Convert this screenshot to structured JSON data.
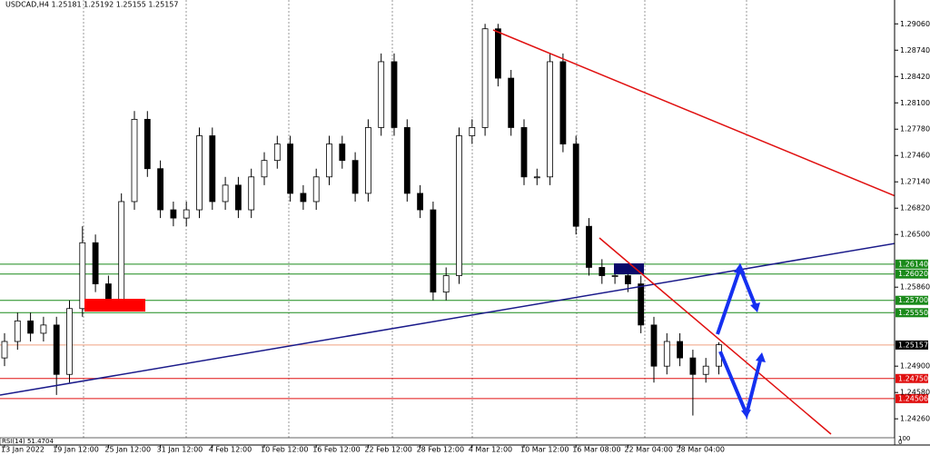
{
  "chart_data": {
    "type": "candlestick",
    "title": "USDCAD,H4  1.25181 1.25192 1.25155 1.25157",
    "annotations": [
      "RSI(14) 51.4704",
      "100",
      "0"
    ],
    "categories": [
      "13 Jan 2022",
      null,
      null,
      null,
      "19 Jan 12:00",
      null,
      null,
      null,
      "25 Jan 12:00",
      null,
      null,
      null,
      "31 Jan 12:00",
      null,
      null,
      null,
      "4 Feb 12:00",
      null,
      null,
      null,
      "10 Feb 12:00",
      null,
      null,
      null,
      "16 Feb 12:00",
      null,
      null,
      null,
      "22 Feb 12:00",
      null,
      null,
      null,
      "28 Feb 12:00",
      null,
      null,
      null,
      "4 Mar 12:00",
      null,
      null,
      null,
      "10 Mar 12:00",
      null,
      null,
      null,
      "16 Mar 08:00",
      null,
      null,
      null,
      "22 Mar 04:00",
      null,
      null,
      null,
      "28 Mar 04:00",
      null,
      null,
      null
    ],
    "open": [
      1.25,
      1.252,
      1.2545,
      1.253,
      1.254,
      1.248,
      1.256,
      1.264,
      1.259,
      1.257,
      1.269,
      1.279,
      1.273,
      1.268,
      1.267,
      1.268,
      1.277,
      1.269,
      1.271,
      1.268,
      1.272,
      1.274,
      1.276,
      1.27,
      1.269,
      1.272,
      1.276,
      1.274,
      1.27,
      1.278,
      1.286,
      1.278,
      1.27,
      1.268,
      1.258,
      1.26,
      1.277,
      1.278,
      1.29,
      1.284,
      1.278,
      1.272,
      1.272,
      1.286,
      1.276,
      1.266,
      1.261,
      1.26,
      1.26,
      1.259,
      1.254,
      1.249,
      1.252,
      1.25,
      1.248,
      1.249
    ],
    "high": [
      1.253,
      1.2555,
      1.2555,
      1.255,
      1.255,
      1.257,
      1.266,
      1.265,
      1.26,
      1.27,
      1.28,
      1.28,
      1.274,
      1.269,
      1.269,
      1.278,
      1.278,
      1.272,
      1.272,
      1.273,
      1.275,
      1.277,
      1.277,
      1.271,
      1.273,
      1.277,
      1.277,
      1.275,
      1.279,
      1.287,
      1.287,
      1.279,
      1.271,
      1.269,
      1.261,
      1.278,
      1.279,
      1.2906,
      1.2906,
      1.285,
      1.279,
      1.273,
      1.287,
      1.287,
      1.277,
      1.267,
      1.262,
      1.261,
      1.261,
      1.26,
      1.255,
      1.253,
      1.253,
      1.251,
      1.25,
      1.2519
    ],
    "low": [
      1.249,
      1.251,
      1.252,
      1.252,
      1.2455,
      1.247,
      1.255,
      1.258,
      1.256,
      1.256,
      1.268,
      1.272,
      1.267,
      1.266,
      1.266,
      1.267,
      1.268,
      1.268,
      1.267,
      1.267,
      1.271,
      1.273,
      1.269,
      1.268,
      1.268,
      1.271,
      1.273,
      1.269,
      1.269,
      1.277,
      1.277,
      1.269,
      1.267,
      1.257,
      1.257,
      1.259,
      1.276,
      1.277,
      1.283,
      1.277,
      1.271,
      1.271,
      1.271,
      1.275,
      1.265,
      1.26,
      1.259,
      1.259,
      1.258,
      1.253,
      1.247,
      1.248,
      1.249,
      1.243,
      1.247,
      1.248
    ],
    "close": [
      1.252,
      1.2545,
      1.253,
      1.254,
      1.248,
      1.256,
      1.264,
      1.259,
      1.257,
      1.269,
      1.279,
      1.273,
      1.268,
      1.267,
      1.268,
      1.277,
      1.269,
      1.271,
      1.268,
      1.272,
      1.274,
      1.276,
      1.27,
      1.269,
      1.272,
      1.276,
      1.274,
      1.27,
      1.278,
      1.286,
      1.278,
      1.27,
      1.268,
      1.258,
      1.26,
      1.277,
      1.278,
      1.29,
      1.284,
      1.278,
      1.272,
      1.272,
      1.286,
      1.276,
      1.266,
      1.261,
      1.26,
      1.26,
      1.259,
      1.254,
      1.249,
      1.252,
      1.25,
      1.248,
      1.249,
      1.2516
    ],
    "ylim": [
      1.2403,
      1.2935
    ],
    "yticks": [
      {
        "value": 1.2906,
        "label": "1.29060"
      },
      {
        "value": 1.2874,
        "label": "1.28740"
      },
      {
        "value": 1.2842,
        "label": "1.28420"
      },
      {
        "value": 1.281,
        "label": "1.28100"
      },
      {
        "value": 1.2778,
        "label": "1.27780"
      },
      {
        "value": 1.2746,
        "label": "1.27460"
      },
      {
        "value": 1.2714,
        "label": "1.27140"
      },
      {
        "value": 1.2682,
        "label": "1.26820"
      },
      {
        "value": 1.265,
        "label": "1.26500"
      },
      {
        "value": 1.2586,
        "label": "1.25860"
      },
      {
        "value": 1.249,
        "label": "1.24900"
      },
      {
        "value": 1.2458,
        "label": "1.24580"
      },
      {
        "value": 1.2426,
        "label": "1.24260"
      }
    ],
    "levels": [
      {
        "value": 1.2614,
        "label": "1.26140",
        "color": "#1a8a1a"
      },
      {
        "value": 1.2602,
        "label": "1.26020",
        "color": "#1a8a1a"
      },
      {
        "value": 1.257,
        "label": "1.25700",
        "color": "#1a8a1a"
      },
      {
        "value": 1.2555,
        "label": "1.25550",
        "color": "#1a8a1a"
      },
      {
        "value": 1.25157,
        "label": "1.25157",
        "color": "#000000"
      },
      {
        "value": 1.2475,
        "label": "1.24750",
        "color": "#e01010"
      },
      {
        "value": 1.24506,
        "label": "1.24506",
        "color": "#e01010"
      }
    ],
    "up_color": "#ffffff",
    "down_color": "#000000"
  }
}
